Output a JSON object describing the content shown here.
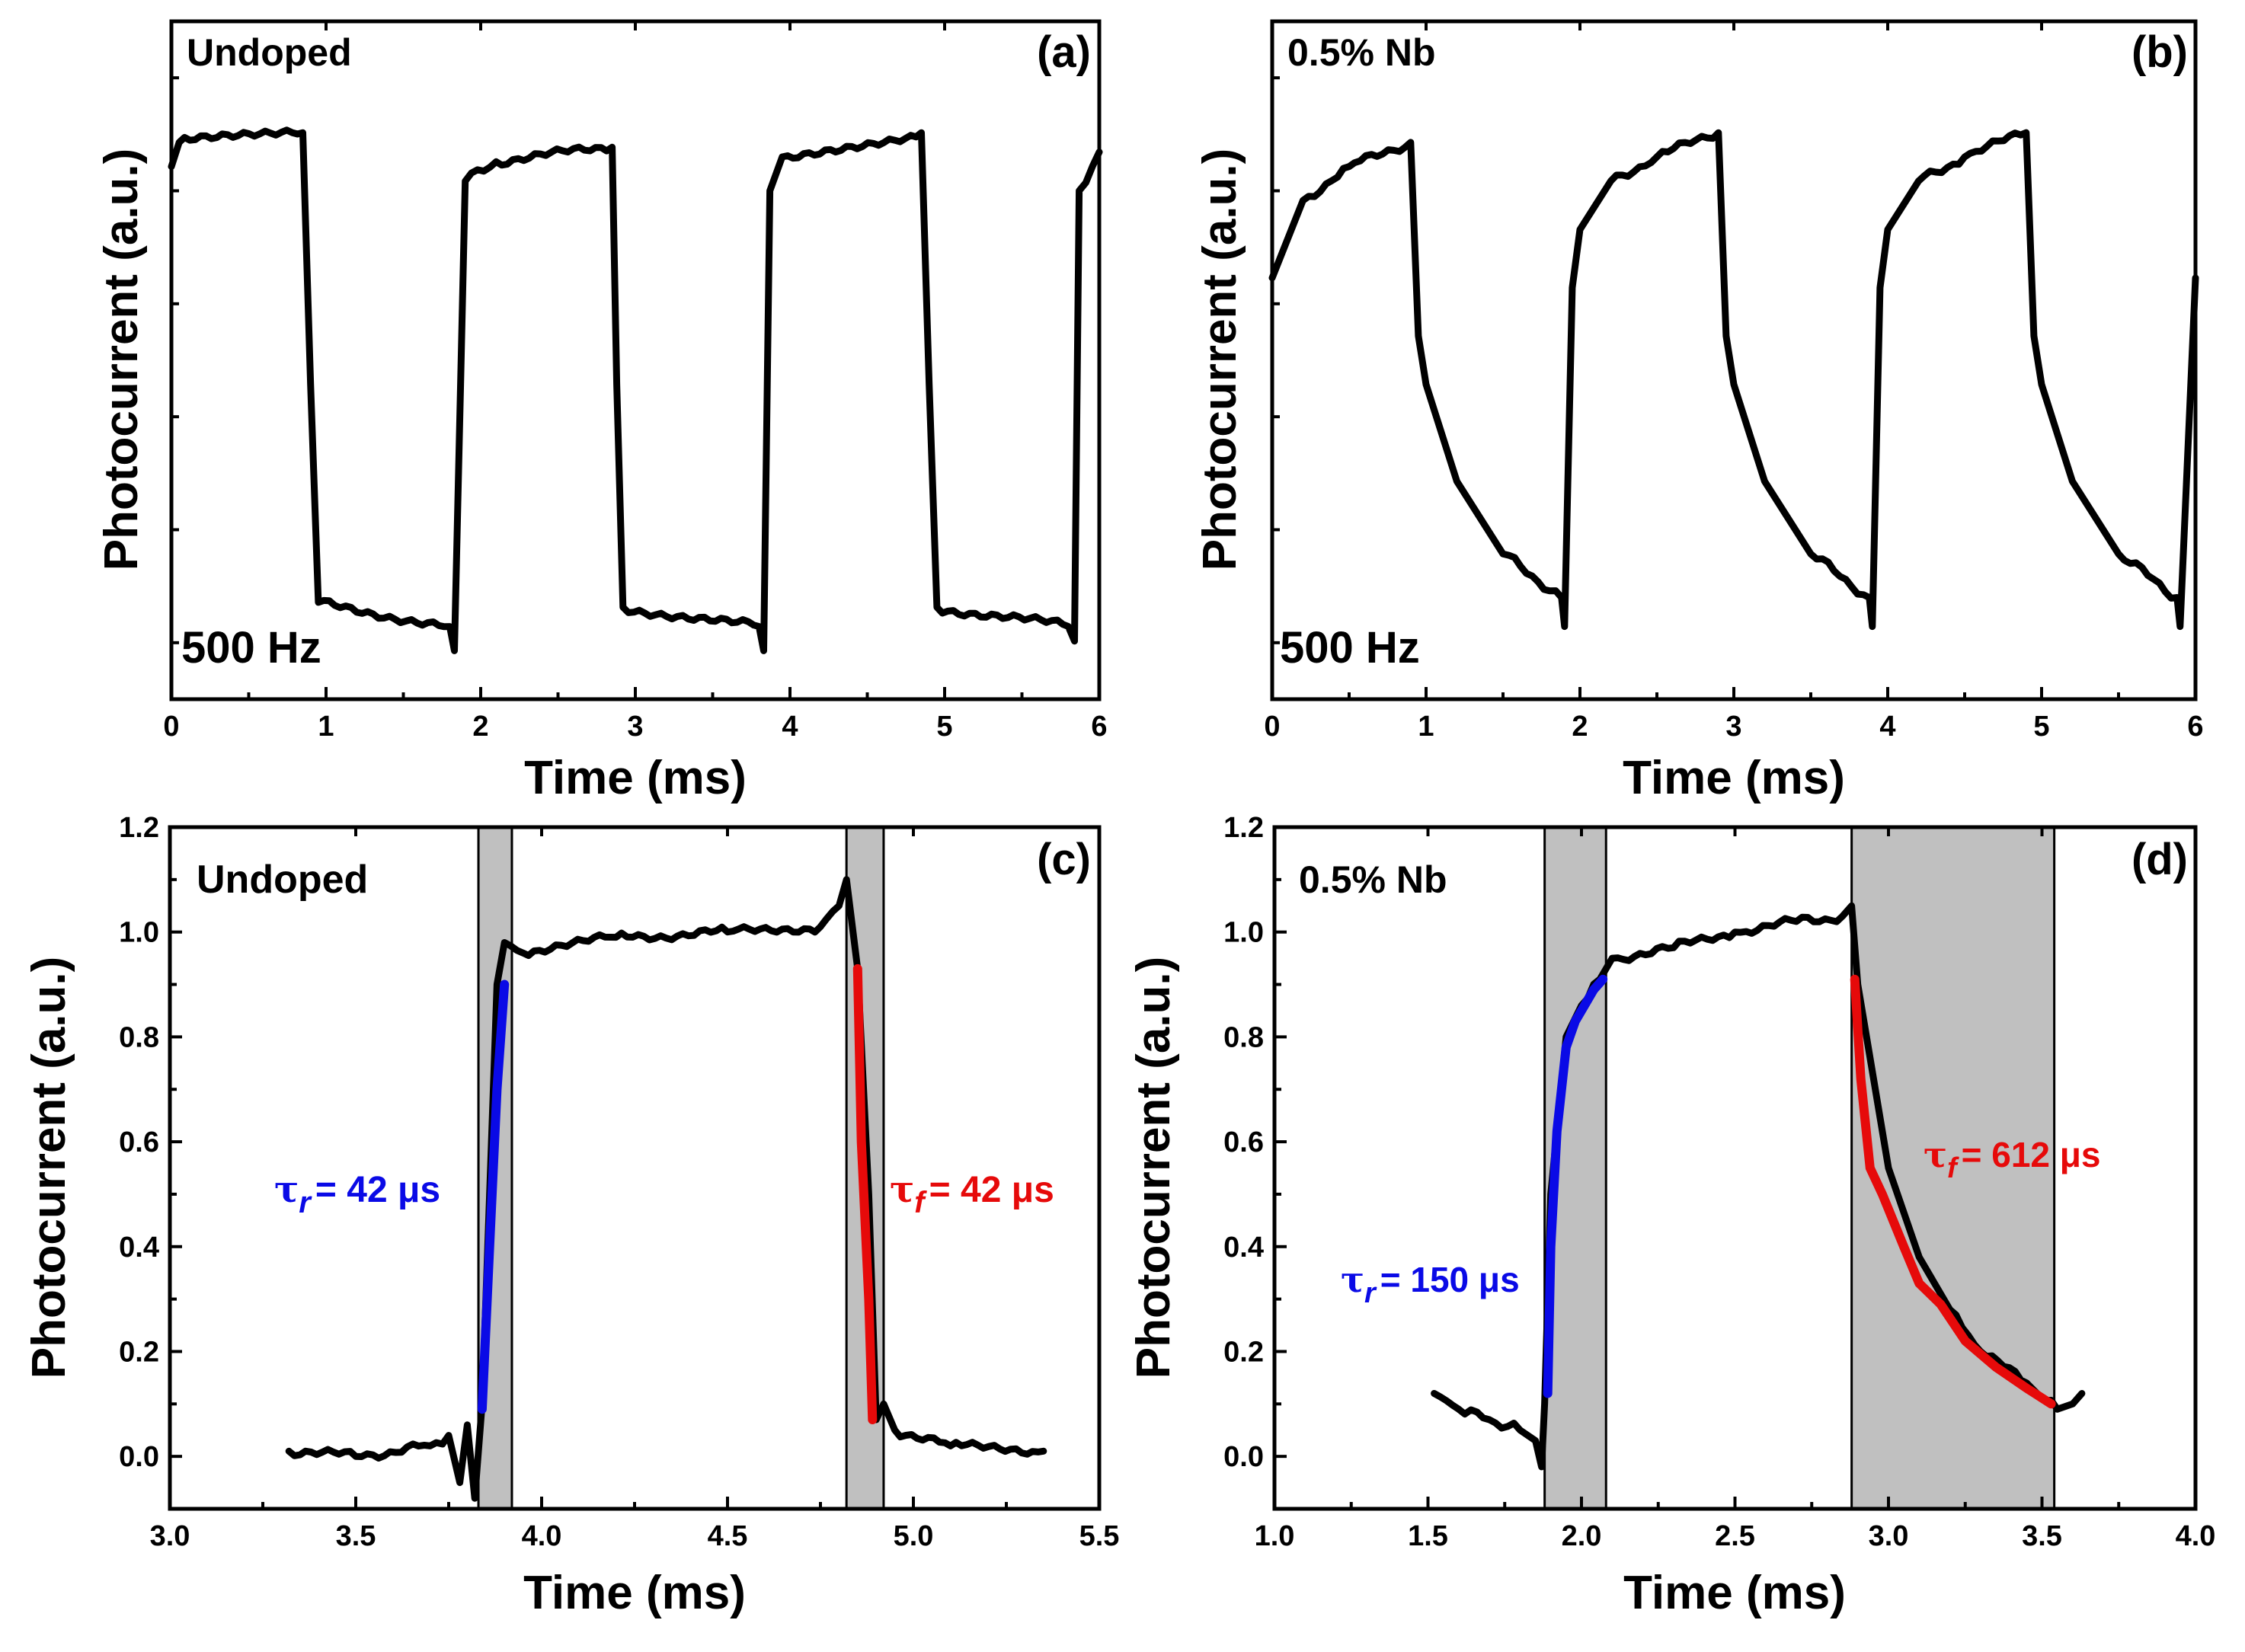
{
  "figure": {
    "colors": {
      "trace": "#000000",
      "rise": "#0a0ae6",
      "fall": "#e60a0a",
      "band": "#c0c0c0"
    }
  },
  "chart_data": [
    {
      "id": "a",
      "type": "line",
      "panel_label": "(a)",
      "sample_label": "Undoped",
      "frequency_label": "500 Hz",
      "xlabel": "Time (ms)",
      "ylabel": "Photocurrent (a.u.)",
      "xlim": [
        0,
        6
      ],
      "ylim": [
        -0.15,
        1.25
      ],
      "xticks": [
        0,
        1,
        2,
        3,
        4,
        5,
        6
      ],
      "xtick_labels": [
        "0",
        "1",
        "2",
        "3",
        "4",
        "5",
        "6"
      ],
      "y_tick_labels_shown": false,
      "series": [
        {
          "name": "photocurrent",
          "x": [
            0,
            0.05,
            0.85,
            0.9,
            0.95,
            1.8,
            1.83,
            1.87,
            1.9,
            2.1,
            2.85,
            2.88,
            2.92,
            3.8,
            3.83,
            3.87,
            3.95,
            4.85,
            4.9,
            4.95,
            5.8,
            5.84,
            5.87,
            6.0
          ],
          "y": [
            0.95,
            1.0,
            1.02,
            0.5,
            0.05,
            0.0,
            -0.05,
            0.5,
            0.92,
            0.96,
            0.99,
            0.5,
            0.04,
            0.0,
            -0.05,
            0.9,
            0.97,
            1.02,
            0.5,
            0.04,
            0.0,
            -0.03,
            0.9,
            0.98
          ]
        }
      ]
    },
    {
      "id": "b",
      "type": "line",
      "panel_label": "(b)",
      "sample_label": "0.5% Nb",
      "frequency_label": "500 Hz",
      "xlabel": "Time (ms)",
      "ylabel": "Photocurrent (a.u.)",
      "xlim": [
        0,
        6
      ],
      "ylim": [
        -0.15,
        1.25
      ],
      "xticks": [
        0,
        1,
        2,
        3,
        4,
        5,
        6
      ],
      "xtick_labels": [
        "0",
        "1",
        "2",
        "3",
        "4",
        "5",
        "6"
      ],
      "y_tick_labels_shown": false,
      "series": [
        {
          "name": "photocurrent",
          "x": [
            0,
            0.2,
            0.5,
            0.9,
            0.95,
            1.0,
            1.2,
            1.5,
            1.88,
            1.9,
            1.95,
            2.0,
            2.2,
            2.5,
            2.9,
            2.95,
            3.0,
            3.2,
            3.5,
            3.88,
            3.9,
            3.95,
            4.0,
            4.2,
            4.5,
            4.9,
            4.95,
            5.0,
            5.2,
            5.5,
            5.88,
            5.9,
            6.0
          ],
          "y": [
            0.72,
            0.88,
            0.95,
            1.0,
            0.6,
            0.5,
            0.3,
            0.15,
            0.06,
            0.0,
            0.7,
            0.82,
            0.92,
            0.97,
            1.02,
            0.6,
            0.5,
            0.3,
            0.15,
            0.06,
            0.0,
            0.7,
            0.82,
            0.92,
            0.97,
            1.02,
            0.6,
            0.5,
            0.3,
            0.15,
            0.06,
            0.0,
            0.72
          ]
        }
      ]
    },
    {
      "id": "c",
      "type": "line",
      "panel_label": "(c)",
      "sample_label": "Undoped",
      "xlabel": "Time (ms)",
      "ylabel": "Photocurrent (a.u.)",
      "xlim": [
        3.0,
        5.5
      ],
      "ylim": [
        -0.1,
        1.2
      ],
      "xticks": [
        3.0,
        3.5,
        4.0,
        4.5,
        5.0,
        5.5
      ],
      "xtick_labels": [
        "3.0",
        "3.5",
        "4.0",
        "4.5",
        "5.0",
        "5.5"
      ],
      "yticks": [
        0.0,
        0.2,
        0.4,
        0.6,
        0.8,
        1.0,
        1.2
      ],
      "ytick_labels": [
        "0.0",
        "0.2",
        "0.4",
        "0.6",
        "0.8",
        "1.0",
        "1.2"
      ],
      "shaded_regions": [
        [
          3.83,
          3.92
        ],
        [
          4.82,
          4.92
        ]
      ],
      "series": [
        {
          "name": "photocurrent",
          "x": [
            3.32,
            3.5,
            3.7,
            3.75,
            3.78,
            3.8,
            3.82,
            3.84,
            3.86,
            3.88,
            3.9,
            3.95,
            4.2,
            4.5,
            4.75,
            4.8,
            4.82,
            4.85,
            4.88,
            4.9,
            4.92,
            4.95,
            5.1,
            5.35
          ],
          "y": [
            0.01,
            0.0,
            0.02,
            0.04,
            -0.05,
            0.06,
            -0.08,
            0.1,
            0.5,
            0.9,
            0.98,
            0.96,
            0.99,
            1.0,
            1.01,
            1.05,
            1.1,
            0.93,
            0.5,
            0.07,
            0.1,
            0.05,
            0.02,
            0.01
          ]
        },
        {
          "name": "rise",
          "x": [
            3.84,
            3.86,
            3.88,
            3.9
          ],
          "y": [
            0.09,
            0.4,
            0.7,
            0.9
          ]
        },
        {
          "name": "fall",
          "x": [
            4.85,
            4.86,
            4.88,
            4.89
          ],
          "y": [
            0.93,
            0.6,
            0.3,
            0.07
          ]
        }
      ],
      "annotations": [
        {
          "text": "τr = 42 μs",
          "symbol": "τ",
          "subscript": "r",
          "value": "= 42 μs",
          "color": "rise"
        },
        {
          "text": "τf = 42 μs",
          "symbol": "τ",
          "subscript": "f",
          "value": "= 42 μs",
          "color": "fall"
        }
      ]
    },
    {
      "id": "d",
      "type": "line",
      "panel_label": "(d)",
      "sample_label": "0.5% Nb",
      "xlabel": "Time (ms)",
      "ylabel": "Photocurrent (a.u.)",
      "xlim": [
        1.0,
        4.0
      ],
      "ylim": [
        -0.1,
        1.2
      ],
      "xticks": [
        1.0,
        1.5,
        2.0,
        2.5,
        3.0,
        3.5,
        4.0
      ],
      "xtick_labels": [
        "1.0",
        "1.5",
        "2.0",
        "2.5",
        "3.0",
        "3.5",
        "4.0"
      ],
      "yticks": [
        0.0,
        0.2,
        0.4,
        0.6,
        0.8,
        1.0,
        1.2
      ],
      "ytick_labels": [
        "0.0",
        "0.2",
        "0.4",
        "0.6",
        "0.8",
        "1.0",
        "1.2"
      ],
      "shaded_regions": [
        [
          1.88,
          2.08
        ],
        [
          2.88,
          3.54
        ]
      ],
      "series": [
        {
          "name": "photocurrent",
          "x": [
            1.52,
            1.6,
            1.7,
            1.8,
            1.85,
            1.87,
            1.88,
            1.9,
            1.95,
            2.0,
            2.06,
            2.1,
            2.3,
            2.5,
            2.7,
            2.85,
            2.88,
            2.9,
            3.0,
            3.1,
            3.2,
            3.3,
            3.45,
            3.55,
            3.6,
            3.63
          ],
          "y": [
            0.12,
            0.09,
            0.07,
            0.05,
            0.03,
            -0.02,
            0.1,
            0.5,
            0.8,
            0.86,
            0.91,
            0.95,
            0.97,
            1.0,
            1.02,
            1.03,
            1.05,
            0.9,
            0.55,
            0.38,
            0.28,
            0.2,
            0.14,
            0.09,
            0.1,
            0.12
          ]
        },
        {
          "name": "rise",
          "x": [
            1.89,
            1.9,
            1.92,
            1.95,
            1.98,
            2.01,
            2.04,
            2.07
          ],
          "y": [
            0.12,
            0.4,
            0.62,
            0.78,
            0.83,
            0.86,
            0.89,
            0.91
          ]
        },
        {
          "name": "fall",
          "x": [
            2.89,
            2.91,
            2.94,
            2.98,
            3.05,
            3.1,
            3.17,
            3.25,
            3.35,
            3.45,
            3.53
          ],
          "y": [
            0.91,
            0.72,
            0.55,
            0.5,
            0.4,
            0.33,
            0.29,
            0.22,
            0.17,
            0.13,
            0.1
          ]
        }
      ],
      "annotations": [
        {
          "text": "τr = 150 μs",
          "symbol": "τ",
          "subscript": "r",
          "value": "= 150 μs",
          "color": "rise"
        },
        {
          "text": "τf = 612 μs",
          "symbol": "τ",
          "subscript": "f",
          "value": "= 612 μs",
          "color": "fall"
        }
      ]
    }
  ]
}
